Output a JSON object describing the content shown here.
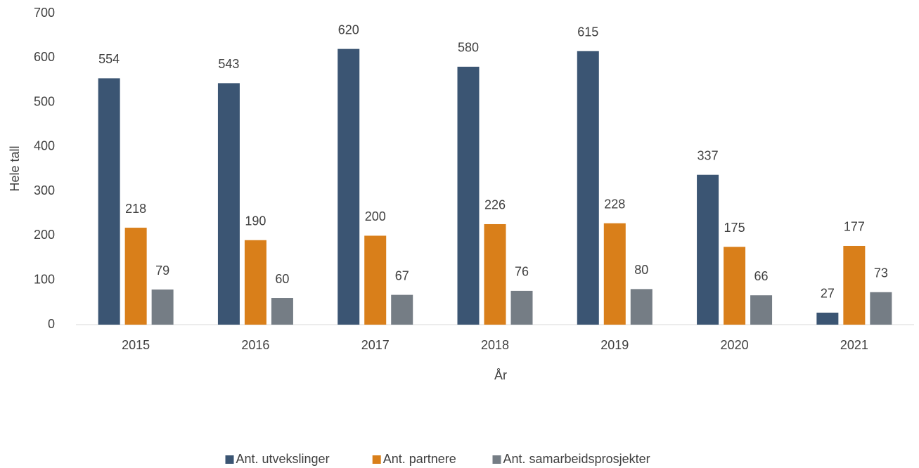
{
  "chart_data": {
    "type": "bar",
    "categories": [
      "2015",
      "2016",
      "2017",
      "2018",
      "2019",
      "2020",
      "2021"
    ],
    "series": [
      {
        "name": "Ant. utvekslinger",
        "color": "#3b5573",
        "values": [
          554,
          543,
          620,
          580,
          615,
          337,
          27
        ]
      },
      {
        "name": "Ant. partnere",
        "color": "#d97f1a",
        "values": [
          218,
          190,
          200,
          226,
          228,
          175,
          177
        ]
      },
      {
        "name": "Ant. samarbeidsprosjekter",
        "color": "#757d85",
        "values": [
          79,
          60,
          67,
          76,
          80,
          66,
          73
        ]
      }
    ],
    "x_label": "År",
    "y_label": "Hele tall",
    "ylim": [
      0,
      700
    ],
    "yticks": [
      0,
      100,
      200,
      300,
      400,
      500,
      600,
      700
    ],
    "grid": false,
    "legend": "bottom"
  }
}
